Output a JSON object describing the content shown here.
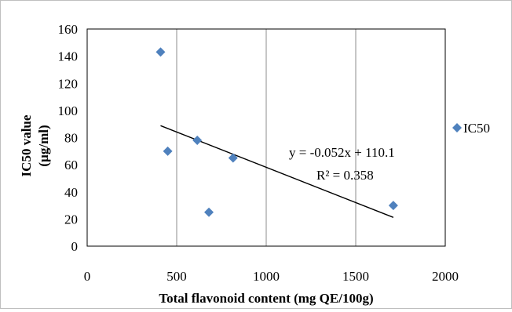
{
  "chart_data": {
    "type": "scatter",
    "title": "",
    "xlabel": "Total flavonoid content (mg QE/100g)",
    "ylabel_line1": "IC50 value",
    "ylabel_line2": "(µg/ml)",
    "xlim": [
      0,
      2000
    ],
    "ylim": [
      0,
      160
    ],
    "x_ticks": [
      0,
      500,
      1000,
      1500,
      2000
    ],
    "y_ticks": [
      0,
      20,
      40,
      60,
      80,
      100,
      120,
      140,
      160
    ],
    "x_tick_labels": [
      "0",
      "500",
      "1000",
      "1500",
      "2000"
    ],
    "y_tick_labels": [
      "0",
      "20",
      "40",
      "60",
      "80",
      "100",
      "120",
      "140",
      "160"
    ],
    "grid": {
      "horizontal": false,
      "vertical": true
    },
    "series": [
      {
        "name": "IC50",
        "marker": "diamond",
        "color": "#4f81bd",
        "points": [
          {
            "x": 410,
            "y": 143
          },
          {
            "x": 450,
            "y": 70
          },
          {
            "x": 615,
            "y": 78
          },
          {
            "x": 680,
            "y": 25
          },
          {
            "x": 815,
            "y": 65
          },
          {
            "x": 1710,
            "y": 30
          }
        ]
      }
    ],
    "trendline": {
      "type": "linear",
      "slope": -0.052,
      "intercept": 110.1,
      "x_range": [
        410,
        1710
      ],
      "color": "#000000",
      "equation_label": "y = -0.052x + 110.1",
      "r2_label": "R² = 0.358"
    },
    "legend": {
      "position": "right",
      "entries": [
        "IC50"
      ]
    }
  }
}
